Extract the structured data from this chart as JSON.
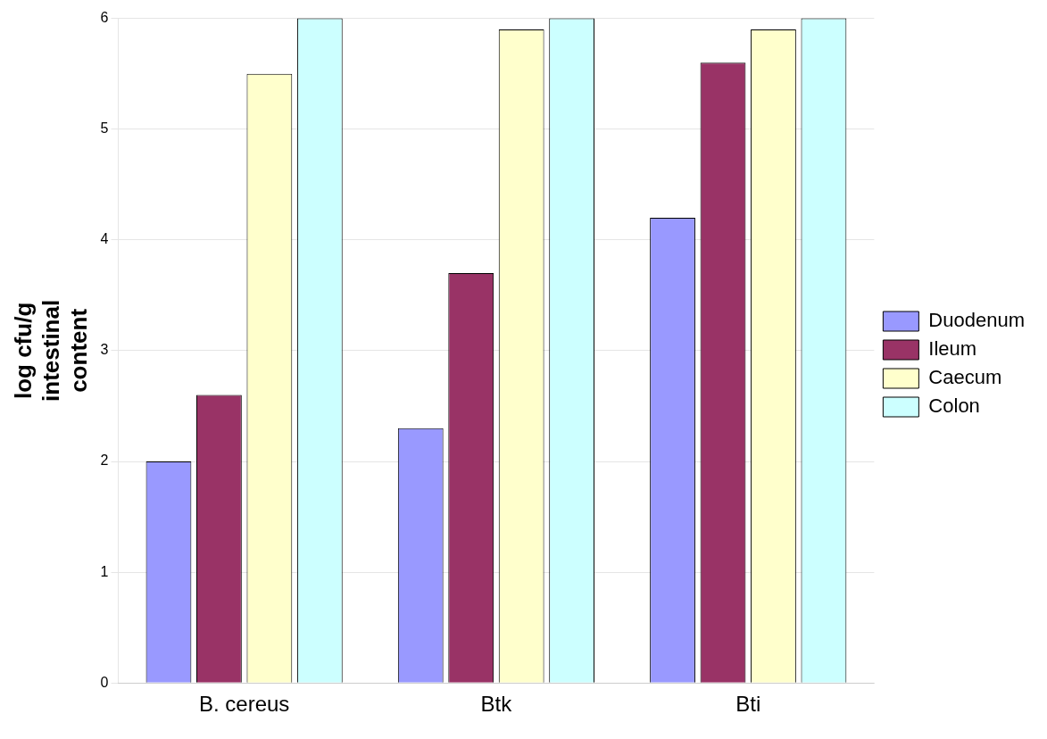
{
  "chart_data": {
    "type": "bar",
    "ylabel": "log cfu/g intestinal content",
    "categories": [
      "B. cereus",
      "Btk",
      "Bti"
    ],
    "series": [
      {
        "name": "Duodenum",
        "color": "#9999ff",
        "values": [
          2.0,
          2.3,
          4.2
        ]
      },
      {
        "name": "Ileum",
        "color": "#993366",
        "values": [
          2.6,
          3.7,
          5.6
        ]
      },
      {
        "name": "Caecum",
        "color": "#ffffcc",
        "values": [
          5.5,
          5.9,
          5.9
        ]
      },
      {
        "name": "Colon",
        "color": "#ccffff",
        "values": [
          6.0,
          6.0,
          6.0
        ]
      }
    ],
    "ylim": [
      0,
      6
    ],
    "yticks": [
      0,
      1,
      2,
      3,
      4,
      5,
      6
    ],
    "grid": "y",
    "legend": "right"
  }
}
